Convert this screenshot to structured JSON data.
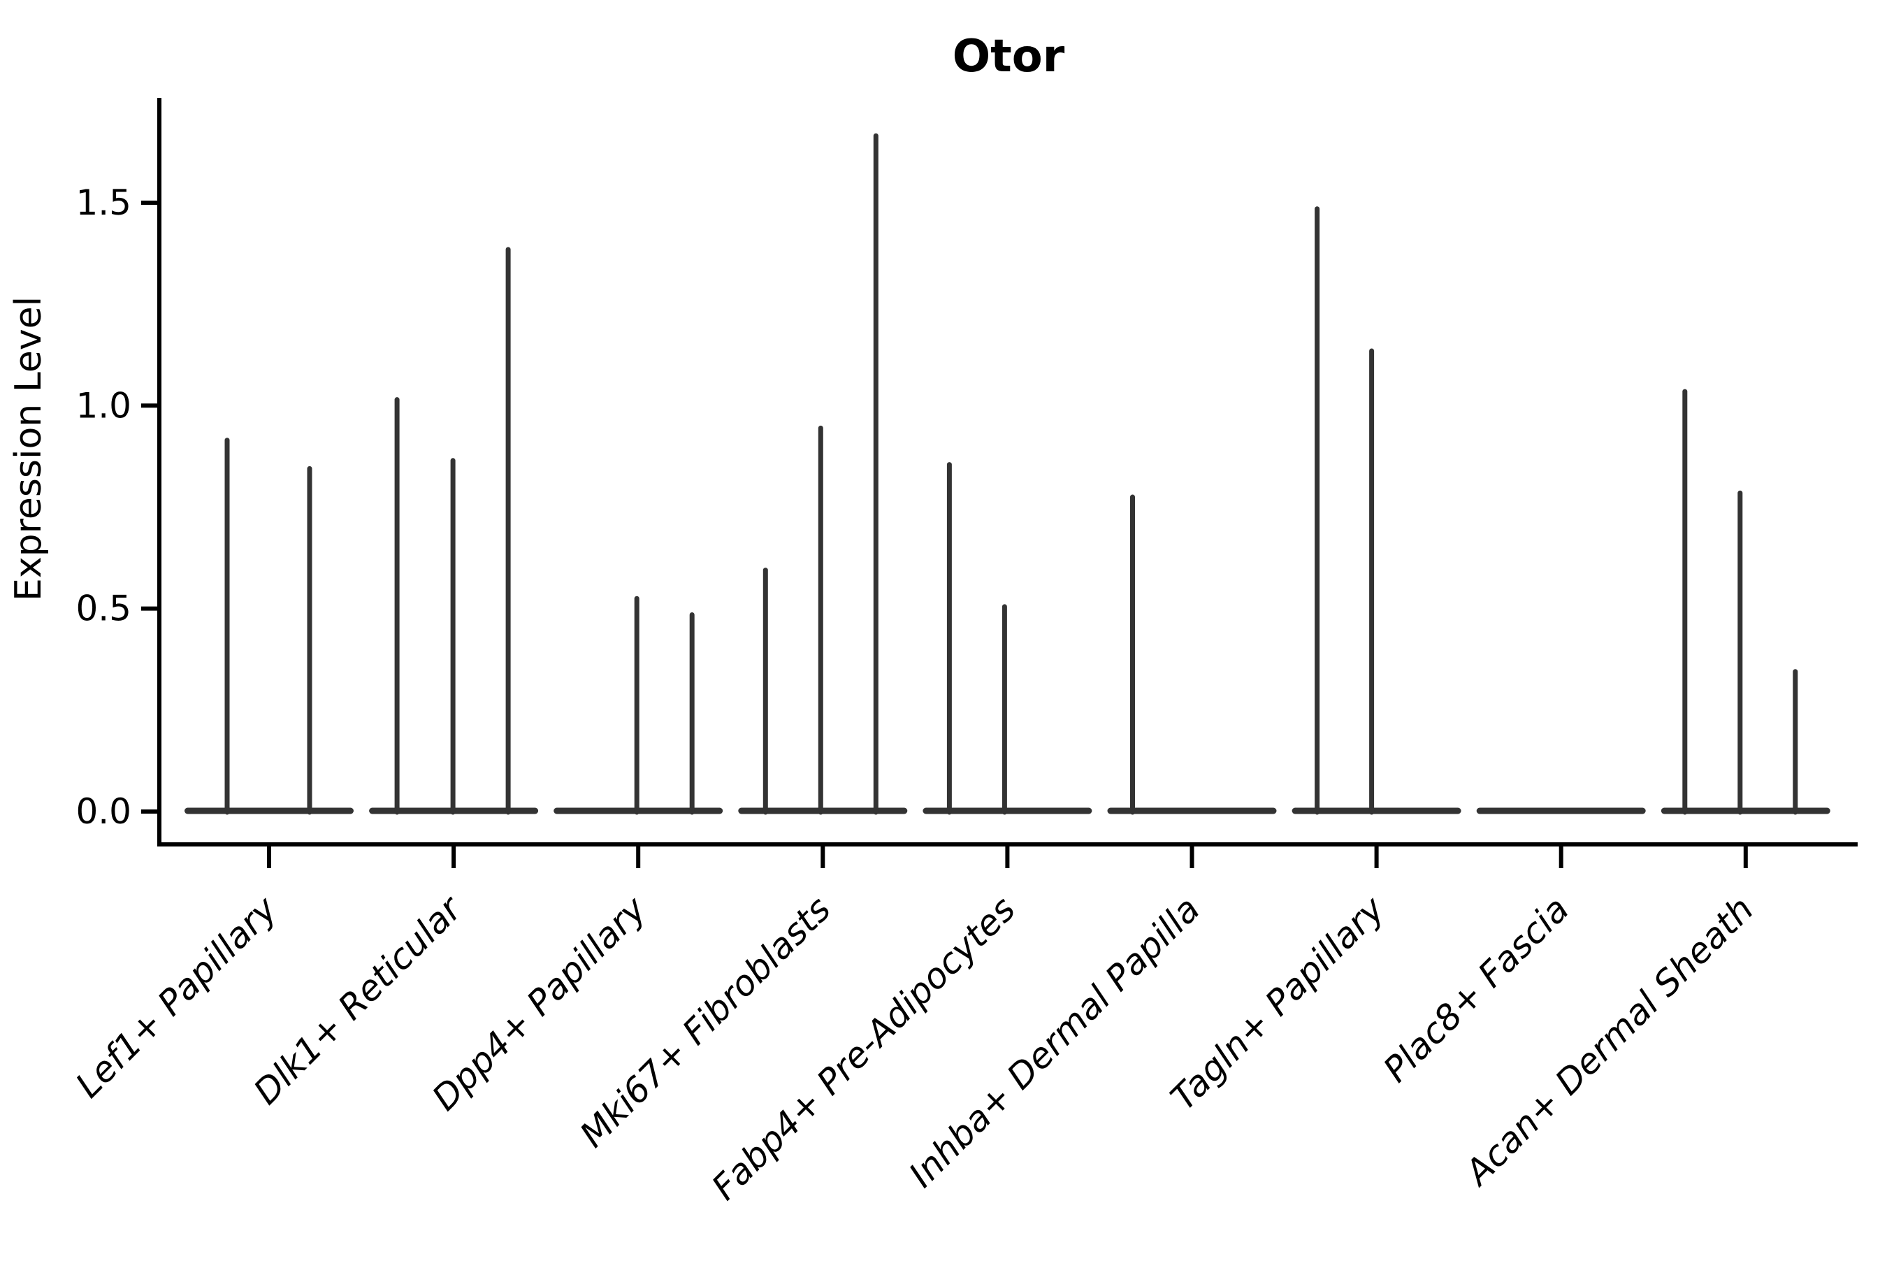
{
  "figure": {
    "title": "Otor",
    "ylabel": "Expression Level"
  },
  "chart_data": {
    "type": "violin",
    "title": "Otor",
    "xlabel": "",
    "ylabel": "Expression Level",
    "ylim": [
      0,
      1.76
    ],
    "ytick_labels": [
      "0.0",
      "0.5",
      "1.0",
      "1.5"
    ],
    "ytick_values": [
      0.0,
      0.5,
      1.0,
      1.5
    ],
    "grid": false,
    "legend_position": "none",
    "violin_color": "#333333",
    "axis_color": "#000000",
    "background_color": "#ffffff",
    "categories": [
      "Lef1+ Papillary",
      "Dlk1+ Reticular",
      "Dpp4+ Papillary",
      "Mki67+ Fibroblasts",
      "Fabp4+ Pre-Adipocytes",
      "Inhba+ Dermal Papilla",
      "Tagln+ Papillary",
      "Plac8+ Fascia",
      "Acan+ Dermal Sheath"
    ],
    "series": [
      {
        "category": "Lef1+ Papillary",
        "violins": [
          {
            "offset": -60,
            "peak": 0.92
          },
          {
            "offset": 58,
            "peak": 0.85
          }
        ]
      },
      {
        "category": "Dlk1+ Reticular",
        "violins": [
          {
            "offset": -81,
            "peak": 1.02
          },
          {
            "offset": -1,
            "peak": 0.87
          },
          {
            "offset": 78,
            "peak": 1.39
          }
        ]
      },
      {
        "category": "Dpp4+ Papillary",
        "violins": [
          {
            "offset": -2,
            "peak": 0.53
          },
          {
            "offset": 77,
            "peak": 0.49
          }
        ]
      },
      {
        "category": "Mki67+ Fibroblasts",
        "violins": [
          {
            "offset": -82,
            "peak": 0.6
          },
          {
            "offset": -3,
            "peak": 0.95
          },
          {
            "offset": 76,
            "peak": 1.67
          }
        ]
      },
      {
        "category": "Fabp4+ Pre-Adipocytes",
        "violins": [
          {
            "offset": -83,
            "peak": 0.86
          },
          {
            "offset": -4,
            "peak": 0.51
          }
        ]
      },
      {
        "category": "Inhba+ Dermal Papilla",
        "violins": [
          {
            "offset": -85,
            "peak": 0.78
          }
        ]
      },
      {
        "category": "Tagln+ Papillary",
        "violins": [
          {
            "offset": -85,
            "peak": 1.49
          },
          {
            "offset": -7,
            "peak": 1.14
          }
        ]
      },
      {
        "category": "Plac8+ Fascia",
        "violins": []
      },
      {
        "category": "Acan+ Dermal Sheath",
        "violins": [
          {
            "offset": -87,
            "peak": 1.04
          },
          {
            "offset": -8,
            "peak": 0.79
          },
          {
            "offset": 71,
            "peak": 0.35
          }
        ]
      }
    ],
    "baseline_value": 0.0
  }
}
